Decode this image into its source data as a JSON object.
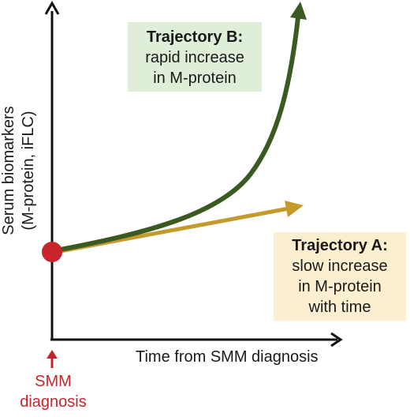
{
  "diagram": {
    "y_axis_label_line1": "Serum biomarkers",
    "y_axis_label_line2": "(M-protein, iFLC)",
    "x_axis_label": "Time from SMM diagnosis",
    "origin_marker": {
      "line1": "SMM",
      "line2": "diagnosis",
      "color": "#c7252b"
    },
    "trajectory_b": {
      "title": "Trajectory B:",
      "line1": "rapid increase",
      "line2": "in M-protein",
      "color": "#3a5a22",
      "box_color": "#dfeed8"
    },
    "trajectory_a": {
      "title": "Trajectory A:",
      "line1": "slow increase",
      "line2": "in M-protein",
      "line3": "with time",
      "color": "#c49a2c",
      "box_color": "#fbefcf"
    },
    "start_point_color": "#c7252b"
  }
}
